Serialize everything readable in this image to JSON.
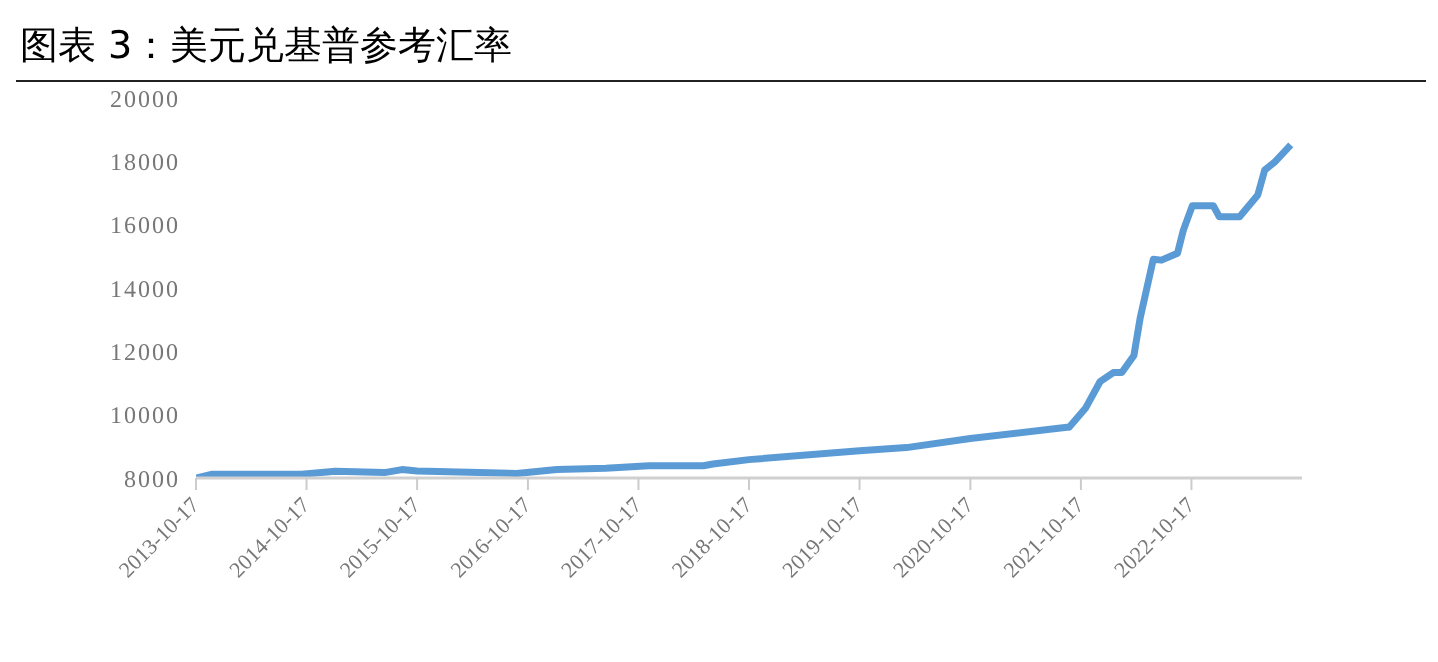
{
  "chart_data": {
    "type": "line",
    "title": "图表 3：美元兑基普参考汇率",
    "x": [
      "2013-10-17",
      "2013-12-10",
      "2014-10-01",
      "2015-01-20",
      "2015-07-01",
      "2015-08-28",
      "2015-10-17",
      "2016-09-10",
      "2017-01-20",
      "2017-07-01",
      "2017-11-20",
      "2018-05-20",
      "2018-06-20",
      "2018-10-17",
      "2019-10-17",
      "2020-03-20",
      "2020-10-17",
      "2021-09-01",
      "2021-09-08",
      "2021-11-01",
      "2021-12-19",
      "2022-02-01",
      "2022-03-01",
      "2022-04-10",
      "2022-05-01",
      "2022-06-13",
      "2022-07-10",
      "2022-09-01",
      "2022-09-20",
      "2022-10-20",
      "2022-12-28",
      "2023-01-17",
      "2023-03-25",
      "2023-05-24",
      "2023-06-16",
      "2023-07-18",
      "2023-09-10"
    ],
    "series": [
      {
        "color": "#5b9bd5",
        "values": [
          8000,
          8120,
          8120,
          8215,
          8170,
          8265,
          8220,
          8145,
          8265,
          8310,
          8385,
          8385,
          8440,
          8580,
          8860,
          8960,
          9250,
          9600,
          9600,
          10200,
          11040,
          11330,
          11330,
          11870,
          13070,
          14910,
          14880,
          15100,
          15820,
          16600,
          16600,
          16250,
          16250,
          16940,
          17730,
          17970,
          18520
        ]
      }
    ],
    "ylim": [
      8000,
      20000
    ],
    "yticks": [
      8000,
      10000,
      12000,
      14000,
      16000,
      18000,
      20000
    ],
    "xlim": [
      "2013-10-17",
      "2023-10-17"
    ],
    "xticks": [
      "2013-10-17",
      "2014-10-17",
      "2015-10-17",
      "2016-10-17",
      "2017-10-17",
      "2018-10-17",
      "2019-10-17",
      "2020-10-17",
      "2021-10-17",
      "2022-10-17"
    ],
    "grid": false,
    "legend": false,
    "marker": "none",
    "line_style": "solid"
  }
}
